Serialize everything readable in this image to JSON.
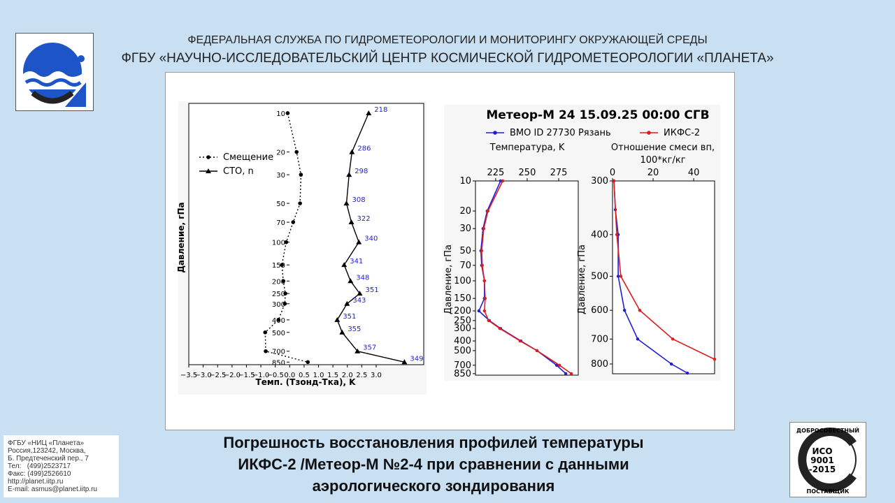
{
  "header": {
    "line1": "ФЕДЕРАЛЬНАЯ СЛУЖБА ПО ГИДРОМЕТЕОРОЛОГИИ И МОНИТОРИНГУ ОКРУЖАЮЩЕЙ СРЕДЫ",
    "line2": "ФГБУ «НАУЧНО-ИССЛЕДОВАТЕЛЬСКИЙ ЦЕНТР КОСМИЧЕСКОЙ ГИДРОМЕТЕОРОЛОГИИ «ПЛАНЕТА»"
  },
  "footer": {
    "title_lines": [
      "Погрешность восстановления профилей температуры",
      "ИКФС-2 /Метеор-М №2-4 при сравнении с данными",
      "аэрологического зондирования"
    ]
  },
  "contact": {
    "lines": [
      "ФГБУ «НИЦ «Планета»",
      "Россия,123242, Москва,",
      "Б. Предтеченский пер., 7",
      "Тел:   (499)2523717",
      "Факс: (499)2526610",
      "http://planet.iitp.ru",
      "E-mail: asmus@planet.iitp.ru"
    ]
  },
  "certificate": {
    "top": "ДОБРОСОВЕСТНЫЙ",
    "lines": [
      "ИСО",
      "9001",
      "-2015"
    ],
    "bottom": "ПОСТАВЩИК"
  },
  "chart_data": [
    {
      "type": "profile",
      "ylabel": "Давление, гПа",
      "xlabel": "Темп. (Тзонд-Тка), K",
      "xlim": [
        -3.5,
        4.65
      ],
      "ylim": [
        8.4,
        890
      ],
      "yscale": "log",
      "y_inverted": true,
      "xticks": [
        {
          "value": -3.5,
          "label": "−3.5"
        },
        {
          "value": -3.0,
          "label": "−3.0"
        },
        {
          "value": -2.5,
          "label": "−2.5"
        },
        {
          "value": -2.0,
          "label": "−2.0"
        },
        {
          "value": -1.5,
          "label": "−1.5"
        },
        {
          "value": -1.0,
          "label": "−1.0"
        },
        {
          "value": -0.5,
          "label": "−0.5"
        },
        {
          "value": 0,
          "label": "0.0"
        },
        {
          "value": 0.5,
          "label": "0.5"
        },
        {
          "value": 1.0,
          "label": "1.0"
        },
        {
          "value": 1.5,
          "label": "1.5"
        },
        {
          "value": 2.0,
          "label": "2.0"
        },
        {
          "value": 2.5,
          "label": "2.5"
        },
        {
          "value": 3.0,
          "label": "3.0"
        }
      ],
      "yticks": [
        10,
        20,
        30,
        50,
        70,
        100,
        150,
        200,
        250,
        300,
        400,
        500,
        700,
        850
      ],
      "series": [
        {
          "name": "Смещение",
          "color": "#000000",
          "line_style": "dotted",
          "marker": "circle",
          "levels": [
            10,
            20,
            30,
            50,
            70,
            100,
            150,
            200,
            250,
            300,
            400,
            500,
            700,
            850
          ],
          "values": [
            -0.07,
            0.24,
            0.39,
            0.36,
            0.12,
            -0.12,
            -0.27,
            -0.22,
            -0.15,
            -0.17,
            -0.39,
            -0.85,
            -0.83,
            0.63
          ]
        },
        {
          "name": "СТО, n",
          "color": "#000000",
          "line_style": "solid",
          "marker": "triangle",
          "annotation_color": "#1f1fd0",
          "levels": [
            10,
            20,
            30,
            50,
            70,
            100,
            150,
            200,
            250,
            300,
            400,
            500,
            700,
            850
          ],
          "values": [
            2.74,
            2.16,
            2.06,
            1.97,
            2.14,
            2.4,
            1.89,
            2.11,
            2.43,
            1.99,
            1.65,
            1.82,
            2.35,
            3.98
          ],
          "annotations": [
            218,
            286,
            298,
            308,
            322,
            340,
            341,
            348,
            351,
            343,
            351,
            355,
            357,
            349
          ]
        }
      ]
    },
    {
      "type": "profile",
      "title": "Метеор-М 24 15.09.25 00:00 СГВ",
      "ylabel": "Давление, гПа",
      "xlabel": "Температура, K",
      "xlim": [
        209,
        290.5
      ],
      "ylim": [
        10,
        880
      ],
      "yscale": "log",
      "y_inverted": true,
      "xticks": [
        225,
        250,
        275
      ],
      "yticks": [
        10,
        20,
        30,
        50,
        70,
        100,
        150,
        200,
        250,
        300,
        400,
        500,
        700,
        850
      ],
      "series": [
        {
          "name": "ВМО ID 27730 Рязань",
          "color": "#1f1fd8",
          "line_style": "solid",
          "marker": "circle",
          "levels": [
            10,
            20,
            30,
            50,
            70,
            100,
            150,
            200,
            250,
            300,
            400,
            500,
            700,
            850
          ],
          "values": [
            228.9,
            218.3,
            215,
            213.3,
            213.9,
            216.1,
            216.1,
            211.7,
            220,
            228.9,
            245,
            257.8,
            273.3,
            280.6
          ]
        },
        {
          "name": "ИКФС-2",
          "color": "#e01b1b",
          "line_style": "solid",
          "marker": "circle",
          "levels": [
            10,
            20,
            30,
            50,
            70,
            100,
            150,
            200,
            250,
            300,
            400,
            500,
            700,
            850
          ],
          "values": [
            230.6,
            218.9,
            215.6,
            213.9,
            214.4,
            216.1,
            216.7,
            216.1,
            219.4,
            228.3,
            244.4,
            257.8,
            275.6,
            285
          ]
        }
      ]
    },
    {
      "type": "profile",
      "ylabel": "Давление, гПа",
      "xlabel": [
        "Отношение смеси вп,",
        "100*кг/кг"
      ],
      "xlim": [
        0,
        50.3
      ],
      "ylim": [
        300,
        843
      ],
      "yscale": "log",
      "y_inverted": true,
      "xticks": [
        0,
        20,
        40
      ],
      "yticks": [
        300,
        400,
        500,
        600,
        700,
        800
      ],
      "series": [
        {
          "color": "#1f1fd8",
          "line_style": "solid",
          "marker": "circle",
          "levels": [
            300,
            350,
            400,
            500,
            600,
            700,
            800,
            840
          ],
          "values": [
            0.7,
            1.4,
            2.8,
            2.8,
            5.9,
            12.4,
            29,
            36.9
          ]
        },
        {
          "color": "#e01b1b",
          "line_style": "solid",
          "marker": "circle",
          "levels": [
            300,
            400,
            500,
            600,
            700,
            780
          ],
          "values": [
            0.7,
            2.1,
            4.1,
            13.4,
            29.7,
            50.3
          ]
        }
      ]
    }
  ]
}
